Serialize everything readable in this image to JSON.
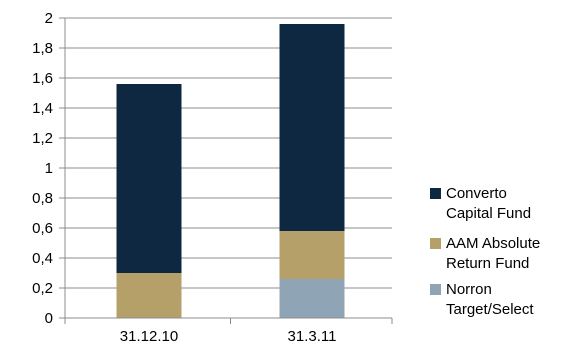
{
  "chart_data": {
    "type": "bar",
    "stacked": true,
    "categories": [
      "31.12.10",
      "31.3.11"
    ],
    "series": [
      {
        "name": "Norron Target/Select",
        "values": [
          0,
          0.26
        ],
        "color": "#8fa4b5"
      },
      {
        "name": "AAM Absolute Return Fund",
        "values": [
          0.3,
          0.32
        ],
        "color": "#b5a06a"
      },
      {
        "name": "Converto Capital Fund",
        "values": [
          1.26,
          1.38
        ],
        "color": "#0e2841"
      }
    ],
    "legend_order": [
      "Converto Capital Fund",
      "AAM Absolute Return Fund",
      "Norron Target/Select"
    ],
    "legend_lines": [
      [
        "Converto",
        "Capital Fund"
      ],
      [
        "AAM Absolute",
        "Return Fund"
      ],
      [
        "Norron",
        "Target/Select"
      ]
    ],
    "ylim": [
      0,
      2
    ],
    "y_ticks": [
      "0",
      "0,2",
      "0,4",
      "0,6",
      "0,8",
      "1",
      "1,2",
      "1,4",
      "1,6",
      "1,8",
      "2"
    ],
    "legend_position": "right",
    "grid": true,
    "title": "",
    "xlabel": "",
    "ylabel": ""
  }
}
